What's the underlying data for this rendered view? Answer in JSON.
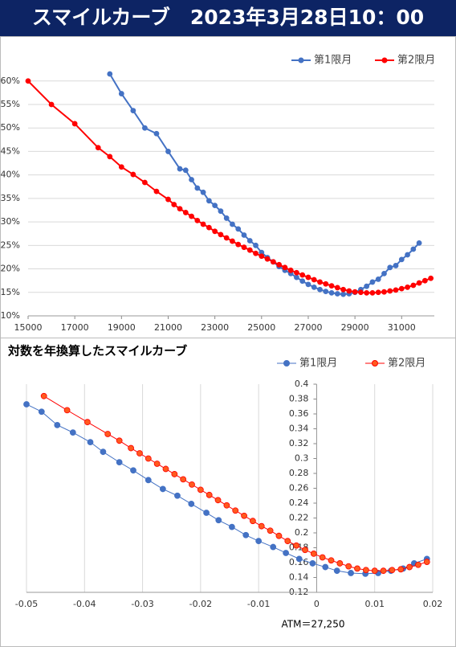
{
  "title": "スマイルカーブ　2023年3月28日10：00",
  "chart_data": [
    {
      "type": "line",
      "xlim": [
        15000,
        32400
      ],
      "xticks": [
        15000,
        17000,
        19000,
        21000,
        23000,
        25000,
        27000,
        29000,
        31000
      ],
      "ylim": [
        10,
        61.5
      ],
      "yticks": [
        {
          "value": 10,
          "label": "10%"
        },
        {
          "value": 15,
          "label": "15%"
        },
        {
          "value": 20,
          "label": "20%"
        },
        {
          "value": 25,
          "label": "25%"
        },
        {
          "value": 30,
          "label": "30%"
        },
        {
          "value": 35,
          "label": "35%"
        },
        {
          "value": 40,
          "label": "40%"
        },
        {
          "value": 45,
          "label": "45%"
        },
        {
          "value": 50,
          "label": "50%"
        },
        {
          "value": 55,
          "label": "55%"
        },
        {
          "value": 60,
          "label": "60%"
        }
      ],
      "grid": "horizontal",
      "legend": "top-right",
      "series": [
        {
          "name": "第1限月",
          "color": "#4472c4",
          "marker_fill": "#4472c4",
          "x": [
            18500,
            19000,
            19500,
            20000,
            20500,
            21000,
            21500,
            21750,
            22000,
            22250,
            22500,
            22750,
            23000,
            23250,
            23500,
            23750,
            24000,
            24250,
            24500,
            24750,
            25000,
            25250,
            25500,
            25750,
            26000,
            26250,
            26500,
            26750,
            27000,
            27250,
            27500,
            27750,
            28000,
            28250,
            28500,
            28750,
            29000,
            29250,
            29500,
            29750,
            30000,
            30250,
            30500,
            30750,
            31000,
            31250,
            31500,
            31750
          ],
          "values": [
            61.5,
            57.3,
            53.7,
            50,
            48.8,
            45,
            41.3,
            41,
            39,
            37.2,
            36.3,
            34.5,
            33.5,
            32.3,
            30.8,
            29.5,
            28.5,
            27.2,
            26,
            25,
            23.5,
            22.4,
            21.5,
            20.5,
            19.7,
            19,
            18.2,
            17.4,
            16.7,
            16.1,
            15.6,
            15.2,
            14.9,
            14.7,
            14.6,
            14.7,
            15.0,
            15.6,
            16.3,
            17.2,
            17.8,
            19.0,
            20.3,
            20.7,
            22.0,
            23.0,
            24.2,
            25.5
          ]
        },
        {
          "name": "第2限月",
          "color": "#ff0000",
          "marker_fill": "#ff0000",
          "x": [
            15000,
            16000,
            17000,
            18000,
            18500,
            19000,
            19500,
            20000,
            20500,
            21000,
            21250,
            21500,
            21750,
            22000,
            22250,
            22500,
            22750,
            23000,
            23250,
            23500,
            23750,
            24000,
            24250,
            24500,
            24750,
            25000,
            25250,
            25500,
            25750,
            26000,
            26250,
            26500,
            26750,
            27000,
            27250,
            27500,
            27750,
            28000,
            28250,
            28500,
            28750,
            29000,
            29250,
            29500,
            29750,
            30000,
            30250,
            30500,
            30750,
            31000,
            31250,
            31500,
            31750,
            32000,
            32250
          ],
          "values": [
            60,
            55,
            50.9,
            45.8,
            43.9,
            41.7,
            40.1,
            38.4,
            36.5,
            34.8,
            33.7,
            32.8,
            32.0,
            31.2,
            30.3,
            29.5,
            28.8,
            28.0,
            27.3,
            26.6,
            25.9,
            25.2,
            24.6,
            24.0,
            23.3,
            22.7,
            22.1,
            21.5,
            20.9,
            20.3,
            19.7,
            19.2,
            18.7,
            18.2,
            17.7,
            17.2,
            16.8,
            16.4,
            16.0,
            15.6,
            15.3,
            15.1,
            15.0,
            14.9,
            14.9,
            15.0,
            15.1,
            15.3,
            15.5,
            15.8,
            16.1,
            16.5,
            17.0,
            17.5,
            18.0
          ]
        }
      ]
    },
    {
      "type": "line",
      "title": "対数を年換算したスマイルカーブ",
      "xlim": [
        -0.05,
        0.02
      ],
      "xticks": [
        -0.05,
        -0.04,
        -0.03,
        -0.02,
        -0.01,
        0,
        0.01,
        0.02
      ],
      "ylim": [
        0.12,
        0.4
      ],
      "yticks": [
        0.12,
        0.14,
        0.16,
        0.18,
        0.2,
        0.22,
        0.24,
        0.26,
        0.28,
        0.3,
        0.32,
        0.34,
        0.36,
        0.38,
        0.4
      ],
      "y_axis_crosses": 0,
      "grid": "vertical",
      "legend": "top-right",
      "annotations": [
        "ATM＝27,250"
      ],
      "series": [
        {
          "name": "第1限月",
          "color": "#4472c4",
          "marker_fill": "#4472c4",
          "x": [
            -0.05,
            -0.0474,
            -0.0447,
            -0.042,
            -0.039,
            -0.0368,
            -0.034,
            -0.0316,
            -0.029,
            -0.0265,
            -0.024,
            -0.0216,
            -0.019,
            -0.0169,
            -0.0146,
            -0.0122,
            -0.01,
            -0.0075,
            -0.0053,
            -0.003,
            -0.0007,
            0.0015,
            0.0035,
            0.0059,
            0.0084,
            0.0106,
            0.0128,
            0.0149,
            0.0168,
            0.019
          ],
          "values": [
            0.373,
            0.363,
            0.345,
            0.335,
            0.322,
            0.309,
            0.295,
            0.284,
            0.271,
            0.259,
            0.25,
            0.239,
            0.227,
            0.217,
            0.208,
            0.197,
            0.189,
            0.181,
            0.173,
            0.165,
            0.159,
            0.154,
            0.149,
            0.146,
            0.145,
            0.146,
            0.149,
            0.152,
            0.159,
            0.165
          ]
        },
        {
          "name": "第2限月",
          "color": "#ff0000",
          "marker_fill": "#ff5a1f",
          "x": [
            -0.047,
            -0.043,
            -0.0395,
            -0.036,
            -0.034,
            -0.032,
            -0.0305,
            -0.029,
            -0.0275,
            -0.026,
            -0.0245,
            -0.023,
            -0.0215,
            -0.02,
            -0.0185,
            -0.017,
            -0.0155,
            -0.014,
            -0.0125,
            -0.011,
            -0.0095,
            -0.008,
            -0.0065,
            -0.005,
            -0.0035,
            -0.002,
            -0.0005,
            0.001,
            0.0025,
            0.004,
            0.0055,
            0.007,
            0.0085,
            0.01,
            0.0115,
            0.013,
            0.0145,
            0.016,
            0.0175,
            0.019
          ],
          "values": [
            0.384,
            0.365,
            0.349,
            0.333,
            0.324,
            0.314,
            0.307,
            0.3,
            0.293,
            0.286,
            0.279,
            0.272,
            0.265,
            0.258,
            0.251,
            0.244,
            0.237,
            0.23,
            0.223,
            0.216,
            0.209,
            0.203,
            0.196,
            0.189,
            0.183,
            0.177,
            0.172,
            0.167,
            0.163,
            0.159,
            0.155,
            0.152,
            0.15,
            0.149,
            0.149,
            0.15,
            0.151,
            0.154,
            0.157,
            0.161
          ]
        }
      ]
    }
  ]
}
